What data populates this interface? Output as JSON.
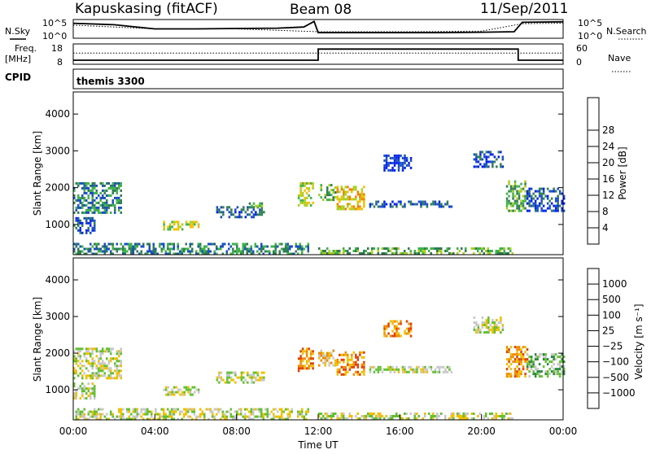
{
  "header": {
    "station": "Kapuskasing (fitACF)",
    "beam": "Beam 08",
    "date": "11/Sep/2011"
  },
  "side_labels": {
    "nsky": "N.Sky",
    "nsearch": "N.Search",
    "freq_top": "Freq.",
    "freq_unit": "[MHz]",
    "nave": "Nave",
    "cpid": "CPID"
  },
  "cpid_text": "themis 3300",
  "chart_data": [
    {
      "type": "line",
      "name": "noise",
      "ytick_labels": [
        "10^5",
        "10^0"
      ],
      "right_tick_labels": [
        "10^5",
        "10^0"
      ],
      "series": [
        {
          "style": "solid",
          "x": [
            0,
            2,
            4,
            6,
            8,
            10,
            11.3,
            11.8,
            12,
            14,
            16,
            18,
            20,
            21.6,
            22,
            24
          ],
          "level": [
            0.8,
            0.72,
            0.5,
            0.5,
            0.52,
            0.54,
            0.6,
            0.9,
            0.3,
            0.3,
            0.3,
            0.3,
            0.32,
            0.35,
            0.85,
            0.88
          ]
        },
        {
          "style": "dotted",
          "x": [
            0,
            4,
            8,
            12,
            16,
            20,
            22,
            24
          ],
          "level": [
            0.7,
            0.5,
            0.5,
            0.35,
            0.35,
            0.38,
            0.78,
            0.8
          ]
        }
      ]
    },
    {
      "type": "line",
      "name": "frequency",
      "ytick_labels": [
        "18",
        "8"
      ],
      "right_tick_labels": [
        "60",
        "0"
      ],
      "series": [
        {
          "style": "solid",
          "x": [
            0,
            12,
            12,
            21.8,
            21.8,
            24
          ],
          "level": [
            0.2,
            0.2,
            0.75,
            0.75,
            0.2,
            0.2
          ]
        },
        {
          "style": "dotted",
          "x": [
            0,
            24
          ],
          "level": [
            0.55,
            0.55
          ]
        }
      ]
    },
    {
      "type": "heatmap",
      "name": "power",
      "ylabel": "Slant Range [km]",
      "yticks": [
        1000,
        2000,
        3000,
        4000
      ],
      "ylim": [
        180,
        4600
      ],
      "colorbar": {
        "label": "Power [dB]",
        "ticks": [
          "4",
          "8",
          "12",
          "16",
          "20",
          "24",
          "28"
        ],
        "colors": [
          "#0022ee",
          "#1a4fc4",
          "#2e7d55",
          "#3fb24a",
          "#a8d020",
          "#f0c000",
          "#f08000",
          "#e02000",
          "#cc0000"
        ]
      },
      "regions": [
        {
          "t": [
            0,
            2.3
          ],
          "r": [
            1300,
            2150
          ],
          "col": 2
        },
        {
          "t": [
            0,
            1.0
          ],
          "r": [
            800,
            1200
          ],
          "col": 1
        },
        {
          "t": [
            4.4,
            6.1
          ],
          "r": [
            900,
            1100
          ],
          "col": 4
        },
        {
          "t": [
            7.0,
            9.3
          ],
          "r": [
            1200,
            1500
          ],
          "col": 1
        },
        {
          "t": [
            8.6,
            9.3
          ],
          "r": [
            1500,
            1600
          ],
          "col": 3
        },
        {
          "t": [
            11.0,
            11.7
          ],
          "r": [
            1550,
            2150
          ],
          "col": 4
        },
        {
          "t": [
            12.0,
            12.8
          ],
          "r": [
            1700,
            2100
          ],
          "col": 3
        },
        {
          "t": [
            12.9,
            14.2
          ],
          "r": [
            1450,
            2050
          ],
          "col": 5
        },
        {
          "t": [
            14.5,
            18.5
          ],
          "r": [
            1500,
            1650
          ],
          "col": 1
        },
        {
          "t": [
            15.2,
            16.5
          ],
          "r": [
            2500,
            2900
          ],
          "col": 0
        },
        {
          "t": [
            19.6,
            21.0
          ],
          "r": [
            2550,
            3000
          ],
          "col": 1
        },
        {
          "t": [
            21.2,
            22.2
          ],
          "r": [
            1400,
            2200
          ],
          "col": 3
        },
        {
          "t": [
            22.2,
            24
          ],
          "r": [
            1350,
            2000
          ],
          "col": 1
        },
        {
          "t": [
            0,
            11.5
          ],
          "r": [
            200,
            500
          ],
          "col": 2
        },
        {
          "t": [
            12.0,
            21.5
          ],
          "r": [
            200,
            380
          ],
          "col": 3
        }
      ]
    },
    {
      "type": "heatmap",
      "name": "velocity",
      "ylabel": "Slant Range [km]",
      "yticks": [
        1000,
        2000,
        3000,
        4000
      ],
      "ylim": [
        180,
        4600
      ],
      "colorbar": {
        "label": "Velocity [m s⁻¹]",
        "ticks": [
          "1000",
          "500",
          "100",
          "25",
          "−25",
          "−100",
          "−500",
          "−1000"
        ],
        "colors": [
          "#1030c8",
          "#2060a0",
          "#2a8a3c",
          "#60c030",
          "#c8c8c8",
          "#f0c000",
          "#f08800",
          "#e04000",
          "#cc0000"
        ]
      },
      "regions": [
        {
          "t": [
            0,
            2.3
          ],
          "r": [
            1300,
            2150
          ],
          "col": 4
        },
        {
          "t": [
            0,
            1.0
          ],
          "r": [
            800,
            1200
          ],
          "col": 4
        },
        {
          "t": [
            4.4,
            6.1
          ],
          "r": [
            900,
            1100
          ],
          "col": 4
        },
        {
          "t": [
            7.0,
            9.3
          ],
          "r": [
            1200,
            1500
          ],
          "col": 4
        },
        {
          "t": [
            11.0,
            11.7
          ],
          "r": [
            1550,
            2150
          ],
          "col": 6
        },
        {
          "t": [
            12.0,
            12.8
          ],
          "r": [
            1700,
            2100
          ],
          "col": 5
        },
        {
          "t": [
            12.9,
            14.2
          ],
          "r": [
            1450,
            2050
          ],
          "col": 6
        },
        {
          "t": [
            14.5,
            18.5
          ],
          "r": [
            1500,
            1650
          ],
          "col": 4
        },
        {
          "t": [
            15.2,
            16.5
          ],
          "r": [
            2500,
            2900
          ],
          "col": 6
        },
        {
          "t": [
            19.6,
            21.0
          ],
          "r": [
            2550,
            3000
          ],
          "col": 4
        },
        {
          "t": [
            21.2,
            22.2
          ],
          "r": [
            1400,
            2200
          ],
          "col": 6
        },
        {
          "t": [
            22.2,
            24
          ],
          "r": [
            1350,
            2000
          ],
          "col": 3
        },
        {
          "t": [
            0,
            11.5
          ],
          "r": [
            200,
            500
          ],
          "col": 4
        },
        {
          "t": [
            12.0,
            21.5
          ],
          "r": [
            200,
            380
          ],
          "col": 4
        }
      ]
    }
  ],
  "x_axis": {
    "ticks": [
      "00:00",
      "04:00",
      "08:00",
      "12:00",
      "16:00",
      "20:00",
      "00:00"
    ],
    "xlabel": "Time UT",
    "xlim": [
      0,
      24
    ]
  }
}
